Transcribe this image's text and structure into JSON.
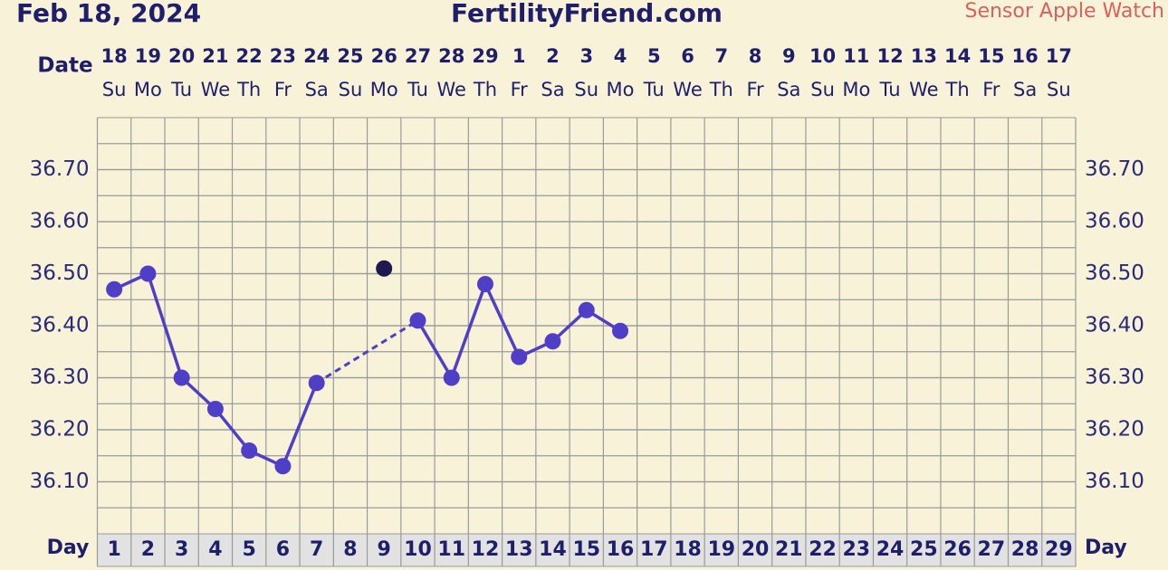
{
  "chart_data": {
    "type": "line",
    "header_date": "Feb 18, 2024",
    "title": "FertilityFriend.com",
    "source": "Sensor Apple Watch",
    "date_label": "Date",
    "day_label": "Day",
    "dates": [
      "18",
      "19",
      "20",
      "21",
      "22",
      "23",
      "24",
      "25",
      "26",
      "27",
      "28",
      "29",
      "1",
      "2",
      "3",
      "4",
      "5",
      "6",
      "7",
      "8",
      "9",
      "10",
      "11",
      "12",
      "13",
      "14",
      "15",
      "16",
      "17"
    ],
    "weekdays": [
      "Su",
      "Mo",
      "Tu",
      "We",
      "Th",
      "Fr",
      "Sa",
      "Su",
      "Mo",
      "Tu",
      "We",
      "Th",
      "Fr",
      "Sa",
      "Su",
      "Mo",
      "Tu",
      "We",
      "Th",
      "Fr",
      "Sa",
      "Su",
      "Mo",
      "Tu",
      "We",
      "Th",
      "Fr",
      "Sa",
      "Su"
    ],
    "days": [
      1,
      2,
      3,
      4,
      5,
      6,
      7,
      8,
      9,
      10,
      11,
      12,
      13,
      14,
      15,
      16,
      17,
      18,
      19,
      20,
      21,
      22,
      23,
      24,
      25,
      26,
      27,
      28,
      29
    ],
    "values": [
      36.47,
      36.5,
      36.3,
      36.24,
      36.16,
      36.13,
      36.29,
      null,
      null,
      36.41,
      36.3,
      36.48,
      36.34,
      36.37,
      36.43,
      36.39,
      null,
      null,
      null,
      null,
      null,
      null,
      null,
      null,
      null,
      null,
      null,
      null,
      null
    ],
    "excluded_values": [
      null,
      null,
      null,
      null,
      null,
      null,
      null,
      null,
      36.51,
      null,
      null,
      null,
      null,
      null,
      null,
      null,
      null,
      null,
      null,
      null,
      null,
      null,
      null,
      null,
      null,
      null,
      null,
      null,
      null
    ],
    "color": "#4f3fc6",
    "excluded_color": "#1c1a4f",
    "ylim": [
      36.0,
      36.8
    ],
    "yticks": [
      {
        "value": 36.1,
        "label": "36.10"
      },
      {
        "value": 36.2,
        "label": "36.20"
      },
      {
        "value": 36.3,
        "label": "36.30"
      },
      {
        "value": 36.4,
        "label": "36.40"
      },
      {
        "value": 36.5,
        "label": "36.50"
      },
      {
        "value": 36.6,
        "label": "36.60"
      },
      {
        "value": 36.7,
        "label": "36.70"
      }
    ],
    "grid": true
  }
}
